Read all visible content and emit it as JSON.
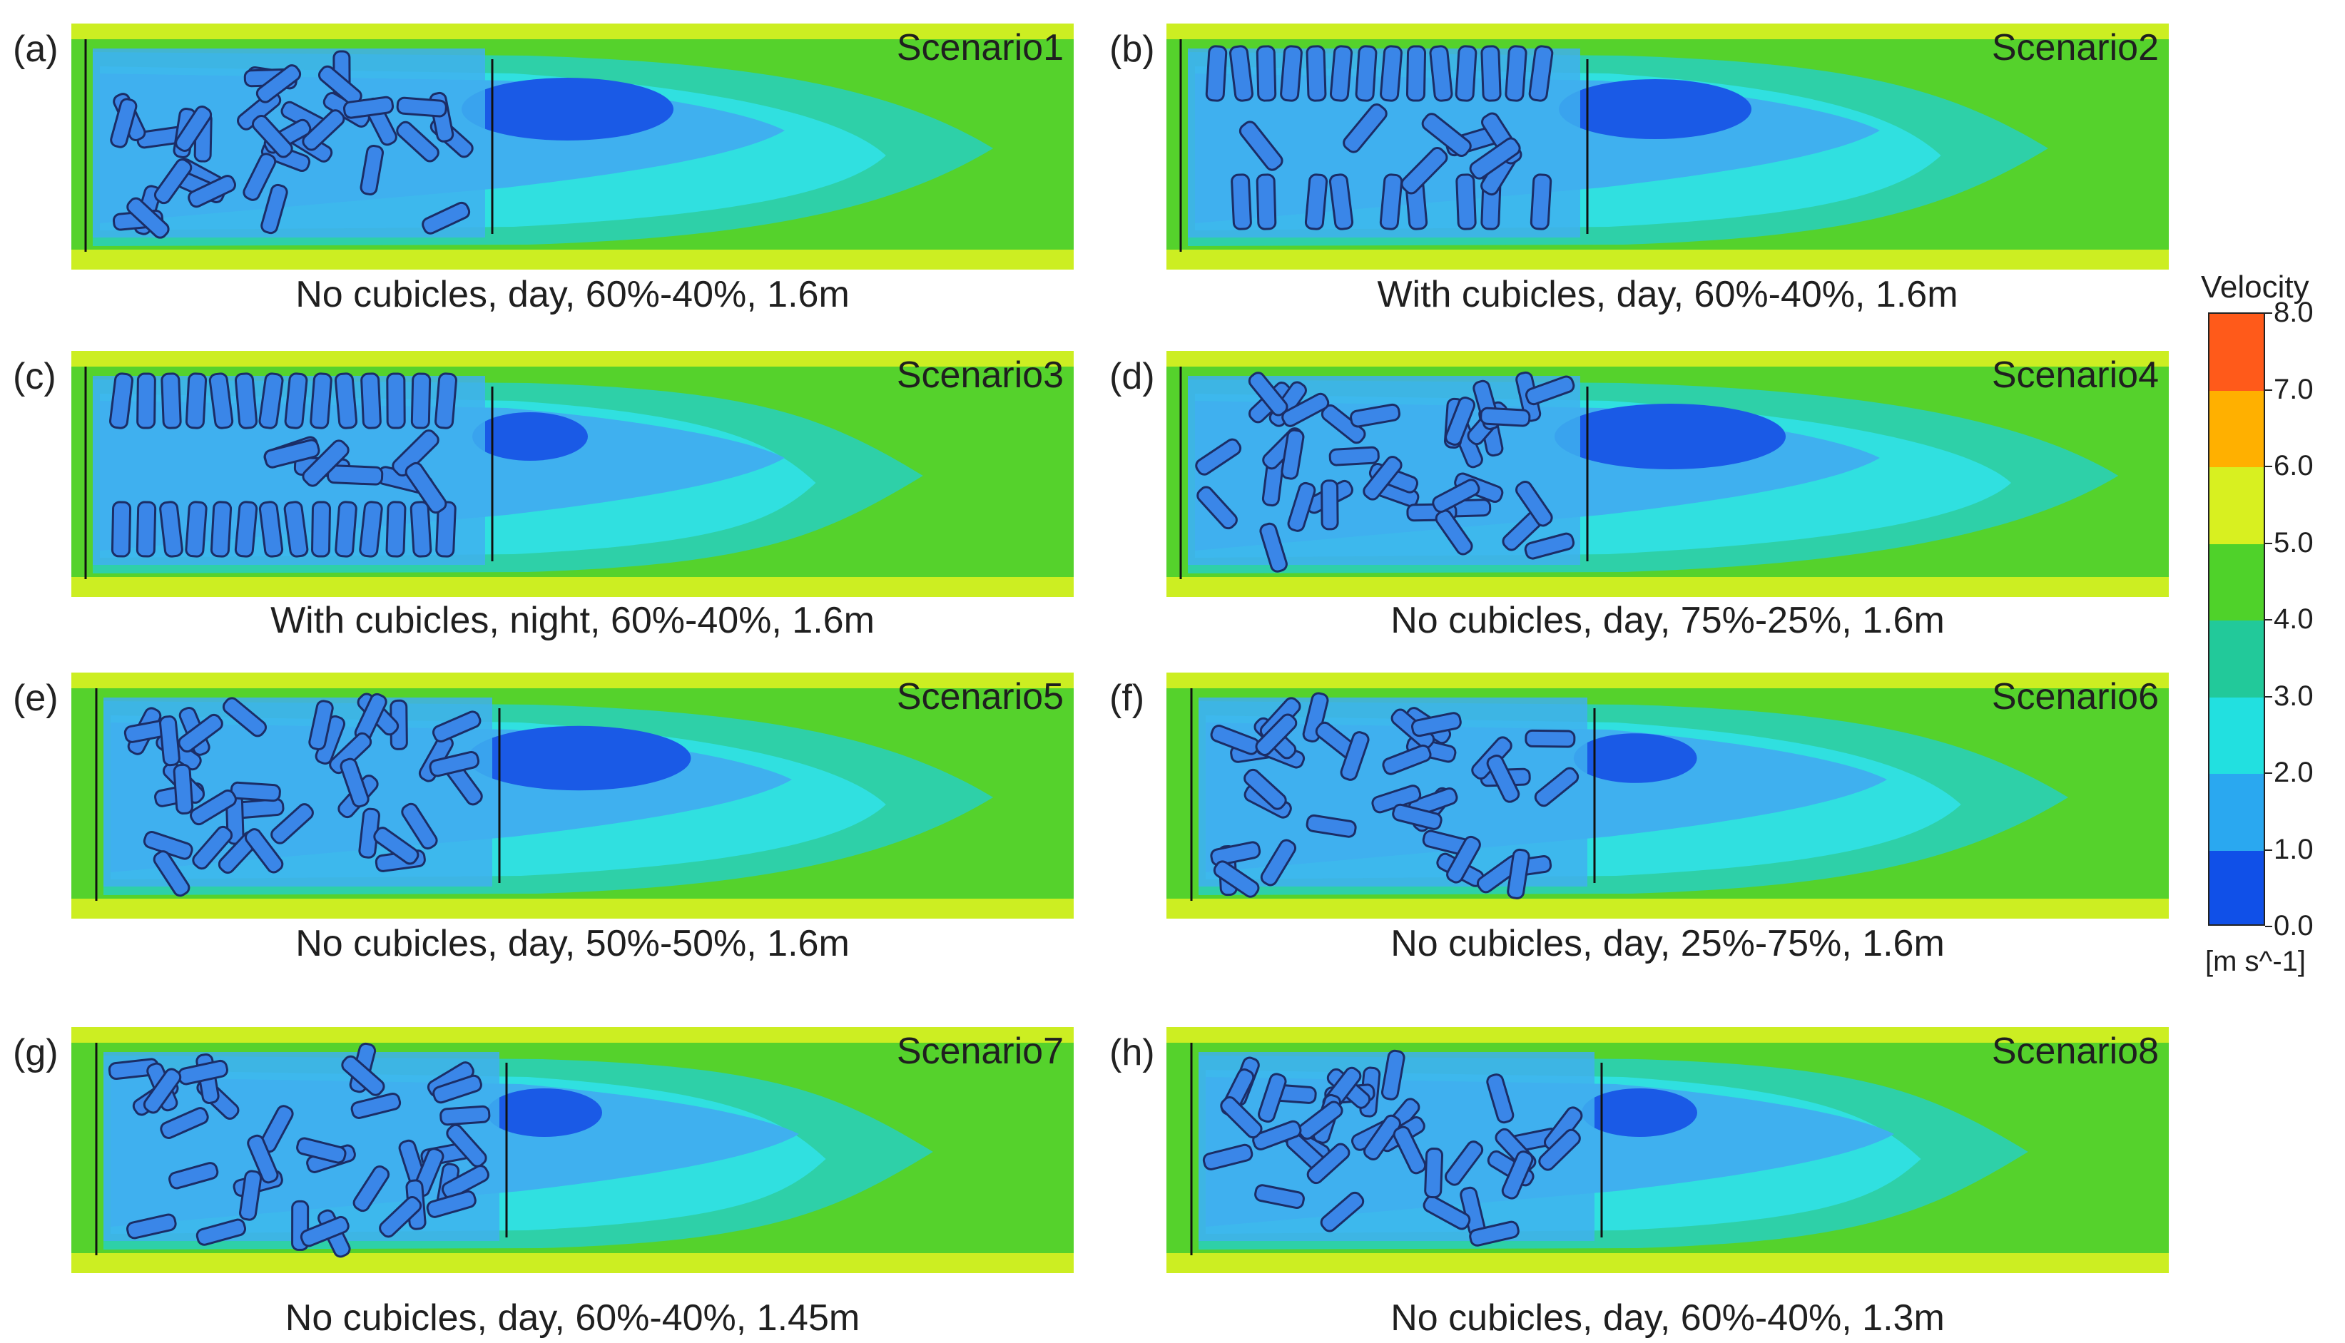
{
  "panels": [
    {
      "letter": "(a)",
      "scenario": "Scenario1",
      "caption": "No cubicles, day, 60%-40%, 1.6m"
    },
    {
      "letter": "(b)",
      "scenario": "Scenario2",
      "caption": "With cubicles, day, 60%-40%, 1.6m"
    },
    {
      "letter": "(c)",
      "scenario": "Scenario3",
      "caption": "With cubicles, night, 60%-40%, 1.6m"
    },
    {
      "letter": "(d)",
      "scenario": "Scenario4",
      "caption": "No cubicles, day, 75%-25%, 1.6m"
    },
    {
      "letter": "(e)",
      "scenario": "Scenario5",
      "caption": "No cubicles, day, 50%-50%, 1.6m"
    },
    {
      "letter": "(f)",
      "scenario": "Scenario6",
      "caption": "No cubicles, day, 25%-75%, 1.6m"
    },
    {
      "letter": "(g)",
      "scenario": "Scenario7",
      "caption": "No cubicles, day, 60%-40%, 1.45m"
    },
    {
      "letter": "(h)",
      "scenario": "Scenario8",
      "caption": "No cubicles, day, 60%-40%, 1.3m"
    }
  ],
  "legend": {
    "title": "Velocity",
    "unit": "[m s^-1]",
    "ticks": [
      "8.0",
      "7.0",
      "6.0",
      "5.0",
      "4.0",
      "3.0",
      "2.0",
      "1.0",
      "0.0"
    ],
    "colors": [
      "#ff5a1a",
      "#ffb000",
      "#d8f020",
      "#4fd22a",
      "#22c99a",
      "#22e0e0",
      "#2aa8f0",
      "#1050e8"
    ]
  },
  "palette": {
    "edge": "#ccee22",
    "green": "#55d22c",
    "teal": "#2ed0a8",
    "cyan": "#30e0e0",
    "lightblue": "#3fb0ef",
    "blue": "#1a5ae6",
    "cow": "#3a86e8",
    "cow_outline": "#1b2d66"
  }
}
